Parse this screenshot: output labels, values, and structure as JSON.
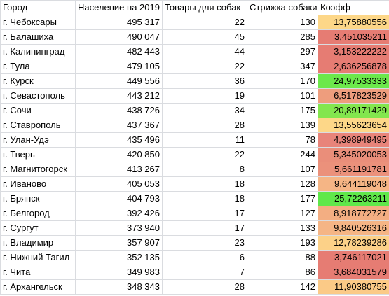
{
  "headers": [
    "Город",
    "Население на 2019",
    "Товары для собак",
    "Стрижка собаки",
    "Коэфф"
  ],
  "rows": [
    {
      "city": "г. Чебоксары",
      "population": "495 317",
      "dog_goods": "22",
      "dog_grooming": "130",
      "coef": "13,75880556",
      "color": "#fdd788"
    },
    {
      "city": "г. Балашиха",
      "population": "490 047",
      "dog_goods": "45",
      "dog_grooming": "285",
      "coef": "3,451035211",
      "color": "#e67c73"
    },
    {
      "city": "г. Калининград",
      "population": "482 443",
      "dog_goods": "44",
      "dog_grooming": "297",
      "coef": "3,153222222",
      "color": "#e67c73"
    },
    {
      "city": "г. Тула",
      "population": "479 105",
      "dog_goods": "22",
      "dog_grooming": "347",
      "coef": "2,636256878",
      "color": "#e67c73"
    },
    {
      "city": "г. Курск",
      "population": "449 556",
      "dog_goods": "36",
      "dog_grooming": "170",
      "coef": "24,97533333",
      "color": "#6ce84b"
    },
    {
      "city": "г. Севастополь",
      "population": "443 212",
      "dog_goods": "19",
      "dog_grooming": "101",
      "coef": "6,517823529",
      "color": "#ee9d7d"
    },
    {
      "city": "г. Сочи",
      "population": "438 726",
      "dog_goods": "34",
      "dog_grooming": "175",
      "coef": "20,89171429",
      "color": "#83e64e"
    },
    {
      "city": "г. Ставрополь",
      "population": "437 367",
      "dog_goods": "28",
      "dog_grooming": "139",
      "coef": "13,55623654",
      "color": "#fdd788"
    },
    {
      "city": "г. Улан-Удэ",
      "population": "435 496",
      "dog_goods": "11",
      "dog_grooming": "78",
      "coef": "4,398949495",
      "color": "#e8847a"
    },
    {
      "city": "г. Тверь",
      "population": "420 850",
      "dog_goods": "22",
      "dog_grooming": "244",
      "coef": "5,345020053",
      "color": "#ea8e7a"
    },
    {
      "city": "г. Магнитогорск",
      "population": "413 267",
      "dog_goods": "8",
      "dog_grooming": "107",
      "coef": "5,661191781",
      "color": "#eb917b"
    },
    {
      "city": "г. Иваново",
      "population": "405 053",
      "dog_goods": "18",
      "dog_grooming": "128",
      "coef": "9,644119048",
      "color": "#f5b585"
    },
    {
      "city": "г. Брянск",
      "population": "404 793",
      "dog_goods": "18",
      "dog_grooming": "177",
      "coef": "25,72263211",
      "color": "#5fe84a"
    },
    {
      "city": "г. Белгород",
      "population": "392 426",
      "dog_goods": "17",
      "dog_grooming": "127",
      "coef": "8,918772727",
      "color": "#f3ae82"
    },
    {
      "city": "г. Сургут",
      "population": "373 940",
      "dog_goods": "17",
      "dog_grooming": "133",
      "coef": "9,840526316",
      "color": "#f5b585"
    },
    {
      "city": "г. Владимир",
      "population": "357 907",
      "dog_goods": "23",
      "dog_grooming": "193",
      "coef": "12,78239286",
      "color": "#fcd188"
    },
    {
      "city": "г. Нижний Тагил",
      "population": "352 135",
      "dog_goods": "6",
      "dog_grooming": "88",
      "coef": "3,746117021",
      "color": "#e67c73"
    },
    {
      "city": "г. Чита",
      "population": "349 983",
      "dog_goods": "7",
      "dog_grooming": "86",
      "coef": "3,684031579",
      "color": "#e67c73"
    },
    {
      "city": "г. Архангельск",
      "population": "348 343",
      "dog_goods": "28",
      "dog_grooming": "142",
      "coef": "11,90380755",
      "color": "#fbca87"
    }
  ]
}
